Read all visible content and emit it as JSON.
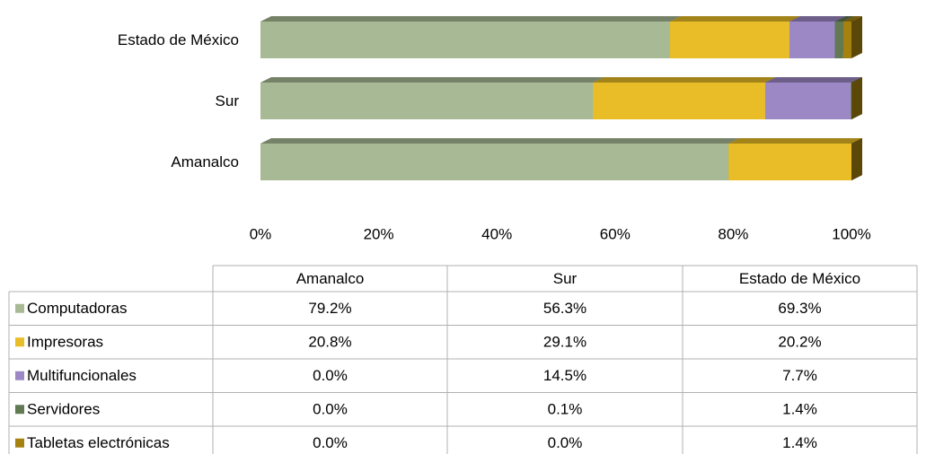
{
  "chart_data": {
    "type": "stacked-bar-100",
    "categories": [
      "Amanalco",
      "Sur",
      "Estado de México"
    ],
    "series": [
      {
        "name": "Computadoras",
        "color": "#a8ba95",
        "values": [
          79.2,
          56.3,
          69.3
        ],
        "value_labels": [
          "79.2%",
          "56.3%",
          "69.3%"
        ]
      },
      {
        "name": "Impresoras",
        "color": "#e8bd27",
        "values": [
          20.8,
          29.1,
          20.2
        ],
        "value_labels": [
          "20.8%",
          "29.1%",
          "20.2%"
        ]
      },
      {
        "name": "Multifuncionales",
        "color": "#9b88c5",
        "values": [
          0,
          14.5,
          7.7
        ],
        "value_labels": [
          "0.0%",
          "14.5%",
          "7.7%"
        ]
      },
      {
        "name": "Servidores",
        "color": "#617a53",
        "values": [
          0,
          0.1,
          1.4
        ],
        "value_labels": [
          "0.0%",
          "0.1%",
          "1.4%"
        ]
      },
      {
        "name": "Tabletas electrónicas",
        "color": "#a58210",
        "values": [
          0,
          0,
          1.4
        ],
        "value_labels": [
          "0.0%",
          "0.0%",
          "1.4%"
        ]
      }
    ],
    "xlim": [
      0,
      100
    ],
    "xticks": [
      {
        "value": 0,
        "label": "0%"
      },
      {
        "value": 20,
        "label": "20%"
      },
      {
        "value": 40,
        "label": "40%"
      },
      {
        "value": 60,
        "label": "60%"
      },
      {
        "value": 80,
        "label": "80%"
      },
      {
        "value": 100,
        "label": "100%"
      }
    ],
    "data_table": true
  }
}
